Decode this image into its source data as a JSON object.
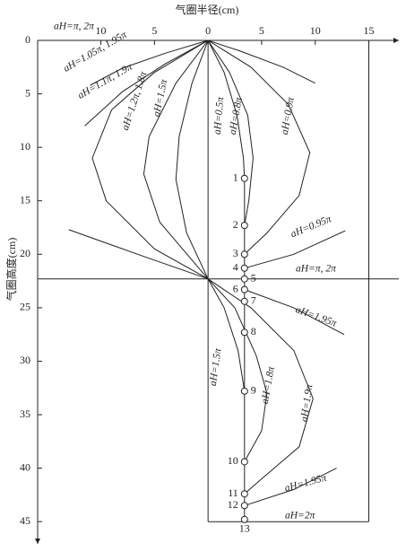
{
  "chart_data": {
    "type": "line",
    "title": "气圈半径(cm)",
    "y_label": "气圈高度(cm)",
    "xlim": [
      -15.9,
      17.8
    ],
    "xticks": [
      {
        "value": -10,
        "label": "10"
      },
      {
        "value": -5,
        "label": "5"
      },
      0,
      5,
      10,
      15
    ],
    "ylim": [
      0,
      47
    ],
    "yticks": [
      0,
      5,
      10,
      15,
      20,
      25,
      30,
      35,
      40,
      45
    ],
    "y_inverted": true,
    "color": "#222222",
    "series": [
      {
        "name": "aH=π, 2π",
        "x": [
          0,
          -4,
          -8,
          -11
        ],
        "values": [
          0,
          1.2,
          2.6,
          4.2
        ]
      },
      {
        "name": "aH=1.05π, 1.95π",
        "x": [
          0,
          -4,
          -8,
          -11.5
        ],
        "values": [
          0,
          2.2,
          4.8,
          8
        ]
      },
      {
        "name": "aH=1.1π, 1.9π",
        "x": [
          0,
          -5,
          -9,
          -10.8,
          -9.5,
          -5,
          0
        ],
        "values": [
          0,
          3,
          6.5,
          11,
          15,
          19.5,
          22.3
        ]
      },
      {
        "name": "aH=1.2π, 1.8π",
        "x": [
          0,
          -3,
          -5.5,
          -6,
          -4.5,
          0
        ],
        "values": [
          0,
          4,
          9,
          12.5,
          17,
          22.3
        ]
      },
      {
        "name": "aH=1.5π",
        "x": [
          0,
          -1.5,
          -2.7,
          -3,
          -2,
          0
        ],
        "values": [
          0,
          4,
          9,
          13,
          18,
          22.3
        ]
      },
      {
        "x": [
          -13,
          -6,
          0
        ],
        "values": [
          17.7,
          20.2,
          22.3
        ]
      },
      {
        "name": "aH=0.5π",
        "x": [
          0,
          1.5,
          2.7,
          3.3,
          3.4
        ],
        "values": [
          0,
          3,
          7,
          11,
          12.9
        ]
      },
      {
        "name": "aH=0.8π",
        "x": [
          0,
          2,
          3.7,
          4.2,
          3.8,
          3.4
        ],
        "values": [
          0,
          3,
          7,
          11,
          15,
          17.3
        ]
      },
      {
        "name": "aH=0.9π",
        "x": [
          0,
          4,
          7.5,
          9.5,
          8.5,
          5.5,
          3.4
        ],
        "values": [
          0,
          2.5,
          6,
          10.5,
          14.5,
          18,
          20
        ]
      },
      {
        "x": [
          0,
          3,
          7,
          10
        ],
        "values": [
          0,
          1,
          2.5,
          4
        ]
      },
      {
        "name": "aH=0.95π",
        "x": [
          3.4,
          8,
          12.8
        ],
        "values": [
          21.3,
          20,
          17.8
        ]
      },
      {
        "name": "aH=π, 2π",
        "x": [
          -15.9,
          17.8
        ],
        "values": [
          22.3,
          22.3
        ]
      },
      {
        "name": "aH=1.95π",
        "x": [
          3.4,
          8,
          12.7
        ],
        "values": [
          23.3,
          25,
          27.5
        ]
      },
      {
        "name": "aH=1.5π",
        "x": [
          0,
          1.5,
          2.8,
          3.4
        ],
        "values": [
          22.3,
          25,
          29,
          32.8
        ]
      },
      {
        "name": "aH=1.8π",
        "x": [
          0,
          2.5,
          4.5,
          5.5,
          5,
          3.4
        ],
        "values": [
          22.3,
          25,
          29.5,
          33,
          36.5,
          39.4
        ]
      },
      {
        "name": "aH=1.9π",
        "x": [
          0,
          4,
          8,
          9.8,
          8.5,
          5,
          3.4
        ],
        "values": [
          22.3,
          25,
          29,
          33.5,
          38,
          41,
          42.4
        ]
      },
      {
        "name": "aH=1.95π",
        "x": [
          3.4,
          8,
          12
        ],
        "values": [
          43.5,
          42,
          40
        ]
      },
      {
        "name": "aH=2π",
        "x": [
          0,
          15
        ],
        "values": [
          45,
          45
        ]
      }
    ],
    "points": {
      "labels": [
        "1",
        "2",
        "3",
        "4",
        "5",
        "6",
        "7",
        "8",
        "9",
        "10",
        "11",
        "12",
        "13"
      ],
      "x": [
        3.4,
        3.4,
        3.4,
        3.4,
        3.4,
        3.4,
        3.4,
        3.4,
        3.4,
        3.4,
        3.4,
        3.4,
        3.4
      ],
      "values": [
        12.9,
        17.3,
        20,
        21.3,
        22.3,
        23.3,
        24.4,
        27.3,
        32.8,
        39.4,
        42.4,
        43.5,
        44.8
      ]
    }
  }
}
